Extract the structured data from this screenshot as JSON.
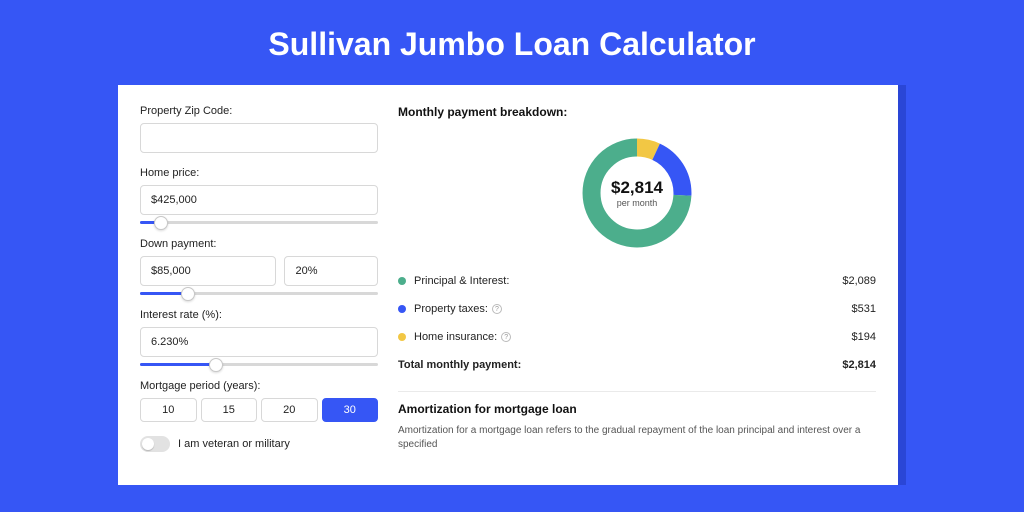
{
  "page": {
    "title": "Sullivan Jumbo Loan Calculator",
    "bg_color": "#3656f5",
    "frame_color": "#2a46d6",
    "card_bg": "#ffffff"
  },
  "form": {
    "zip": {
      "label": "Property Zip Code:",
      "value": ""
    },
    "home_price": {
      "label": "Home price:",
      "value": "$425,000",
      "slider_pct": 9
    },
    "down_payment": {
      "label": "Down payment:",
      "amount": "$85,000",
      "pct": "20%",
      "slider_pct": 20
    },
    "interest_rate": {
      "label": "Interest rate (%):",
      "value": "6.230%",
      "slider_pct": 32
    },
    "mortgage_period": {
      "label": "Mortgage period (years):",
      "options": [
        "10",
        "15",
        "20",
        "30"
      ],
      "selected_index": 3
    },
    "veteran": {
      "label": "I am veteran or military",
      "checked": false
    }
  },
  "breakdown": {
    "heading": "Monthly payment breakdown:",
    "center_amount": "$2,814",
    "center_sub": "per month",
    "donut": {
      "slices": [
        {
          "key": "home_insurance",
          "pct": 6.9,
          "color": "#f2c744"
        },
        {
          "key": "property_taxes",
          "pct": 18.9,
          "color": "#3656f5"
        },
        {
          "key": "principal_interest",
          "pct": 74.2,
          "color": "#4cae8c"
        }
      ],
      "thickness": 18
    },
    "items": [
      {
        "label": "Principal & Interest:",
        "value": "$2,089",
        "color": "#4cae8c",
        "info": false
      },
      {
        "label": "Property taxes:",
        "value": "$531",
        "color": "#3656f5",
        "info": true
      },
      {
        "label": "Home insurance:",
        "value": "$194",
        "color": "#f2c744",
        "info": true
      }
    ],
    "total": {
      "label": "Total monthly payment:",
      "value": "$2,814"
    }
  },
  "amortization": {
    "heading": "Amortization for mortgage loan",
    "text": "Amortization for a mortgage loan refers to the gradual repayment of the loan principal and interest over a specified"
  }
}
